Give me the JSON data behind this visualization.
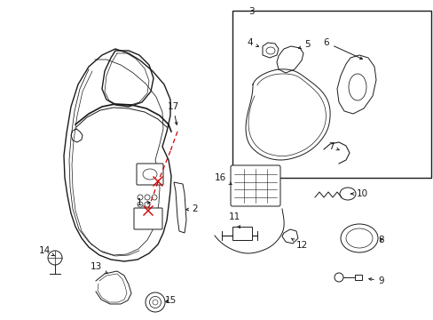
{
  "bg_color": "#ffffff",
  "line_color": "#1a1a1a",
  "red_color": "#cc0000",
  "fig_width": 4.89,
  "fig_height": 3.6,
  "dpi": 100
}
